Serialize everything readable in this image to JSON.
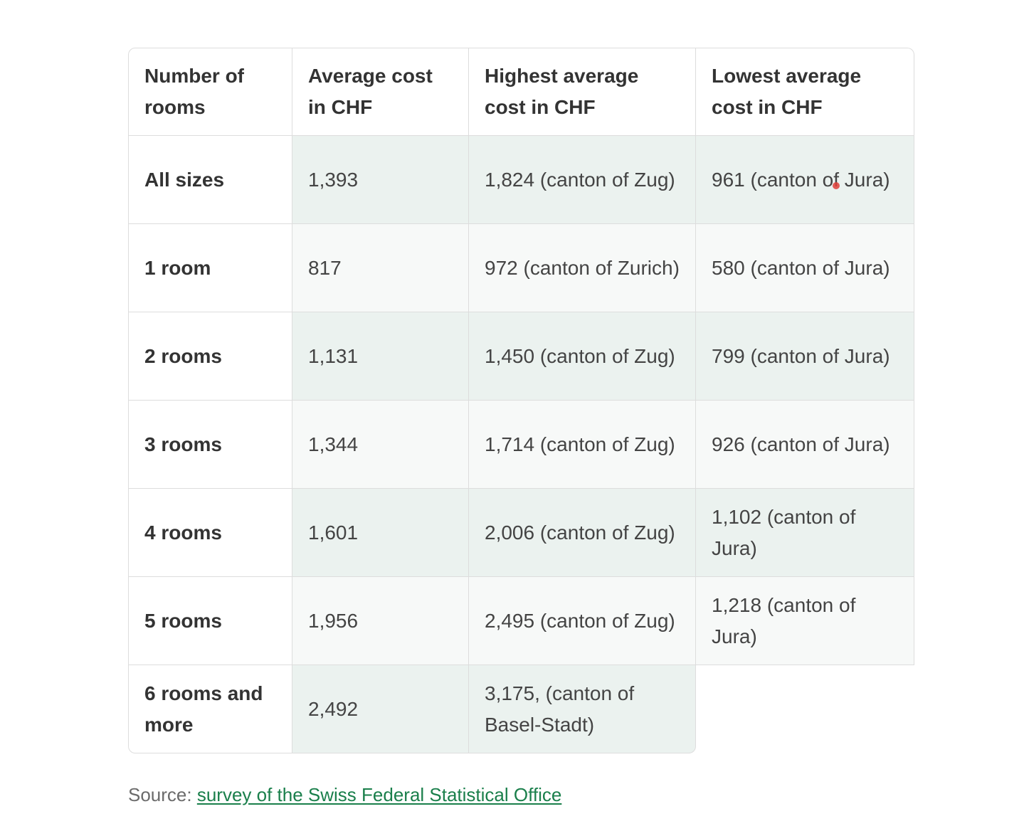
{
  "table": {
    "headers": [
      "Number of rooms",
      "Average cost in CHF",
      "Highest average cost in CHF",
      "Lowest average cost in CHF"
    ],
    "rows": [
      [
        "All sizes",
        "1,393",
        "1,824 (canton of Zug)",
        "961 (canton of Jura)"
      ],
      [
        "1 room",
        "817",
        "972 (canton of Zurich)",
        "580 (canton of Jura)"
      ],
      [
        "2 rooms",
        "1,131",
        "1,450 (canton of Zug)",
        "799 (canton of Jura)"
      ],
      [
        "3 rooms",
        "1,344",
        "1,714 (canton of Zug)",
        "926 (canton of Jura)"
      ],
      [
        "4 rooms",
        "1,601",
        "2,006 (canton of Zug)",
        "1,102 (canton of Jura)"
      ],
      [
        "5 rooms",
        "1,956",
        "2,495 (canton of Zug)",
        "1,218 (canton of Jura)"
      ],
      [
        "6 rooms and more",
        "2,492",
        "3,175, (canton of Basel-Stadt)",
        ""
      ]
    ]
  },
  "source": {
    "prefix": "Source: ",
    "link_text": "survey of the Swiss Federal Statistical Office"
  },
  "colors": {
    "odd_row_bg": "#ebf2ef",
    "even_row_bg": "#f7f9f8",
    "link": "#1a7f4b",
    "border": "#dddddd"
  }
}
